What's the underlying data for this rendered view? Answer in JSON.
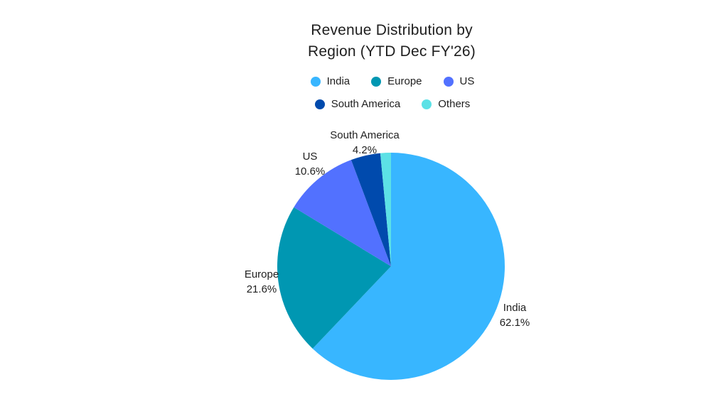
{
  "chart": {
    "title_line1": "Revenue Distribution by",
    "title_line2": "Region (YTD Dec FY'26)"
  },
  "chart_data": {
    "type": "pie",
    "title": "Revenue Distribution by Region (YTD Dec FY'26)",
    "categories": [
      "India",
      "Europe",
      "US",
      "South America",
      "Others"
    ],
    "values": [
      62.1,
      21.6,
      10.6,
      4.2,
      1.5
    ],
    "colors": [
      "#38b6ff",
      "#0097b2",
      "#5271ff",
      "#004aad",
      "#5ce1e6"
    ],
    "legend_position": "top",
    "start_angle_deg": 0,
    "direction": "clockwise",
    "labels_shown_on_chart": [
      "India",
      "Europe",
      "US",
      "South America"
    ]
  },
  "slice_labels": [
    {
      "name": "India",
      "pct": "62.1%"
    },
    {
      "name": "Europe",
      "pct": "21.6%"
    },
    {
      "name": "US",
      "pct": "10.6%"
    },
    {
      "name": "South America",
      "pct": "4.2%"
    }
  ],
  "background_color": "#ffffff"
}
